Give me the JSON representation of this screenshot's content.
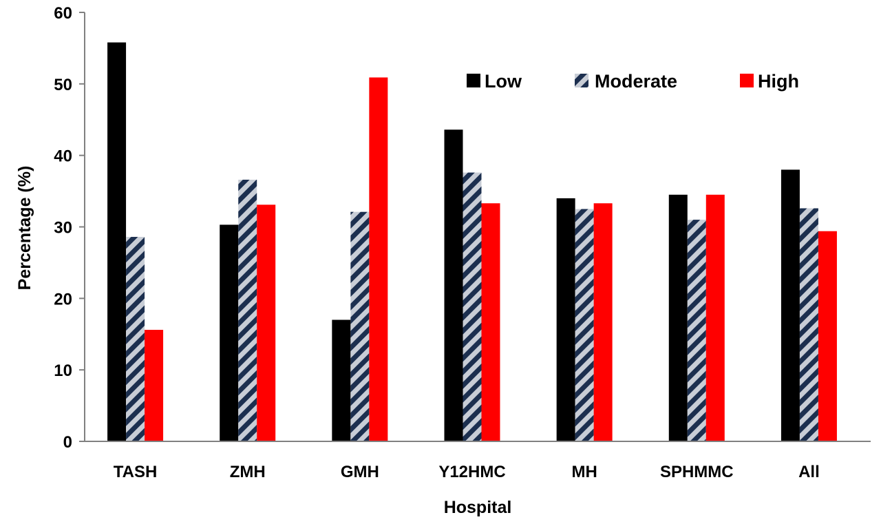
{
  "chart_data": {
    "type": "bar",
    "title": "",
    "xlabel": "Hospital",
    "ylabel": "Percentage (%)",
    "ylim": [
      0,
      60
    ],
    "yticks": [
      0,
      10,
      20,
      30,
      40,
      50,
      60
    ],
    "grid": false,
    "legend_position": "top-right",
    "categories": [
      "TASH",
      "ZMH",
      "GMH",
      "Y12HMC",
      "MH",
      "SPHMMC",
      "All"
    ],
    "series": [
      {
        "name": "Low",
        "color": "#000000",
        "pattern": "solid",
        "values": [
          55.8,
          30.3,
          17.0,
          43.6,
          34.0,
          34.5,
          38.0
        ]
      },
      {
        "name": "Moderate",
        "color": "#1c2f4f",
        "pattern": "diagonal-hatch",
        "values": [
          28.6,
          36.6,
          32.1,
          37.6,
          32.5,
          31.0,
          32.6
        ]
      },
      {
        "name": "High",
        "color": "#ff0000",
        "pattern": "solid",
        "values": [
          15.6,
          33.1,
          50.9,
          33.3,
          33.3,
          34.5,
          29.4
        ]
      }
    ]
  }
}
